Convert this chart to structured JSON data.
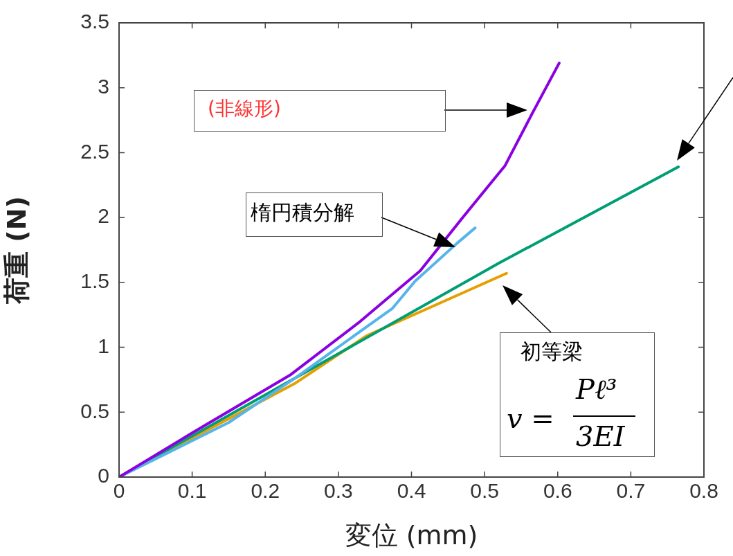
{
  "chart_data": {
    "type": "line",
    "xlabel": "変位 (mm)",
    "ylabel": "荷重 (N)",
    "xlim": [
      0,
      0.8
    ],
    "xticks": [
      0,
      0.1,
      0.2,
      0.3,
      0.4,
      0.5,
      0.6,
      0.7,
      0.8
    ],
    "ylim": [
      0,
      3.5
    ],
    "yticks": [
      0,
      0.5,
      1,
      1.5,
      2,
      2.5,
      3,
      3.5
    ],
    "grid": false,
    "legend": false,
    "marker": "none",
    "line_style": "solid",
    "series": [
      {
        "color": "#8b00e0",
        "x": [
          0,
          0.1,
          0.235,
          0.33,
          0.412,
          0.47,
          0.528,
          0.565,
          0.602
        ],
        "values": [
          0,
          0.34,
          0.79,
          1.2,
          1.59,
          2.0,
          2.4,
          2.8,
          3.19
        ]
      },
      {
        "color": "#56b4e9",
        "x": [
          0,
          0.15,
          0.24,
          0.374,
          0.405,
          0.462,
          0.487
        ],
        "values": [
          0,
          0.42,
          0.76,
          1.3,
          1.51,
          1.8,
          1.92
        ]
      },
      {
        "color": "#009e73",
        "x": [
          0,
          0.24,
          0.52,
          0.765
        ],
        "values": [
          0,
          0.76,
          1.65,
          2.39
        ]
      },
      {
        "color": "#e69f00",
        "x": [
          0,
          0.15,
          0.24,
          0.339,
          0.53
        ],
        "values": [
          0,
          0.45,
          0.72,
          1.09,
          1.57
        ]
      }
    ],
    "annotations": [
      "(非線形)",
      "楕円積分解",
      "初等梁",
      "v =",
      "Pℓ³",
      "3EI"
    ]
  }
}
